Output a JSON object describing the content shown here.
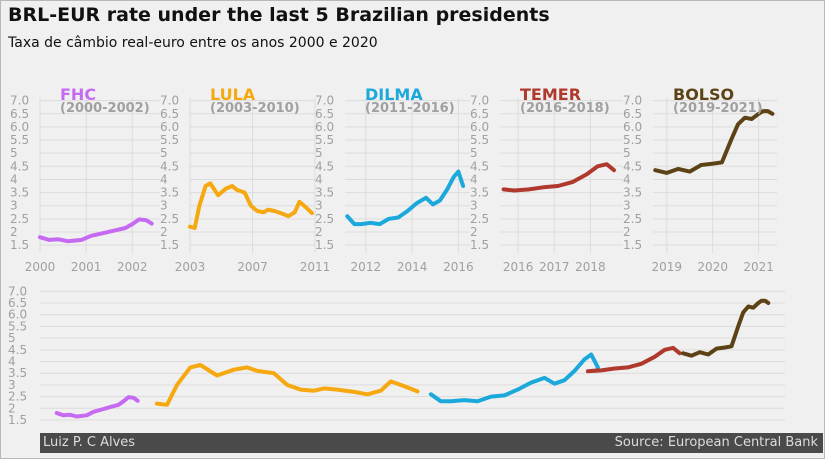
{
  "title": "BRL-EUR rate under the last 5 Brazilian presidents",
  "subtitle": "Taxa de câmbio real-euro entre os anos 2000 e 2020",
  "footer": {
    "author": "Luiz P. C Alves",
    "source": "Source: European Central Bank"
  },
  "chart_data": {
    "type": "line",
    "y_tick_labels": [
      "1.5",
      "2",
      "2.5",
      "3",
      "3.5",
      "4",
      "4.5",
      "5",
      "5.5",
      "6.0",
      "6.5",
      "7.0"
    ],
    "ylim": [
      1.2,
      7.1
    ],
    "grid": true,
    "colors": {
      "FHC": "#c66af2",
      "LULA": "#f5a80f",
      "DILMA": "#1ba9dc",
      "TEMER": "#b0392e",
      "BOLSO": "#5c4214"
    },
    "series": [
      {
        "name": "FHC",
        "period": "(2000-2002)",
        "xlim": [
          2000,
          2002.6
        ],
        "x_ticks": [
          2000,
          2001,
          2002
        ],
        "x": [
          2000.0,
          2000.2,
          2000.4,
          2000.6,
          2000.9,
          2001.1,
          2001.35,
          2001.6,
          2001.85,
          2002.0,
          2002.15,
          2002.3,
          2002.42
        ],
        "y": [
          1.8,
          1.7,
          1.72,
          1.65,
          1.7,
          1.85,
          1.95,
          2.05,
          2.15,
          2.3,
          2.48,
          2.45,
          2.32
        ]
      },
      {
        "name": "LULA",
        "period": "(2003-2010)",
        "xlim": [
          2003,
          2011
        ],
        "x_ticks": [
          2003,
          2007,
          2011
        ],
        "x": [
          2003.0,
          2003.3,
          2003.6,
          2004.0,
          2004.3,
          2004.8,
          2005.3,
          2005.7,
          2006.0,
          2006.5,
          2006.9,
          2007.3,
          2007.7,
          2008.0,
          2008.4,
          2008.9,
          2009.3,
          2009.7,
          2010.0,
          2010.4,
          2010.8
        ],
        "y": [
          2.2,
          2.15,
          3.0,
          3.75,
          3.85,
          3.4,
          3.65,
          3.75,
          3.6,
          3.5,
          3.0,
          2.8,
          2.75,
          2.85,
          2.8,
          2.7,
          2.6,
          2.75,
          3.15,
          2.95,
          2.72
        ]
      },
      {
        "name": "DILMA",
        "period": "(2011-2016)",
        "xlim": [
          2011.1,
          2016.5
        ],
        "x_ticks": [
          2012,
          2014,
          2016
        ],
        "x": [
          2011.2,
          2011.5,
          2011.8,
          2012.2,
          2012.6,
          2013.0,
          2013.4,
          2013.8,
          2014.2,
          2014.6,
          2014.9,
          2015.2,
          2015.5,
          2015.8,
          2016.0,
          2016.2
        ],
        "y": [
          2.6,
          2.3,
          2.3,
          2.35,
          2.3,
          2.5,
          2.55,
          2.8,
          3.1,
          3.3,
          3.05,
          3.2,
          3.6,
          4.1,
          4.3,
          3.75
        ]
      },
      {
        "name": "TEMER",
        "period": "(2016-2018)",
        "xlim": [
          2015.5,
          2018.9
        ],
        "x_ticks": [
          2016,
          2017,
          2018
        ],
        "x": [
          2015.6,
          2015.9,
          2016.3,
          2016.7,
          2017.1,
          2017.5,
          2017.9,
          2018.2,
          2018.45,
          2018.65
        ],
        "y": [
          3.62,
          3.58,
          3.62,
          3.7,
          3.75,
          3.9,
          4.2,
          4.5,
          4.58,
          4.35
        ]
      },
      {
        "name": "BOLSO",
        "period": "(2019-2021)",
        "xlim": [
          2018.7,
          2021.4
        ],
        "x_ticks": [
          2019,
          2020,
          2021
        ],
        "x": [
          2018.75,
          2019.0,
          2019.25,
          2019.5,
          2019.75,
          2020.0,
          2020.2,
          2020.4,
          2020.55,
          2020.7,
          2020.85,
          2021.0,
          2021.1,
          2021.2,
          2021.3
        ],
        "y": [
          4.35,
          4.25,
          4.4,
          4.3,
          4.55,
          4.6,
          4.65,
          5.5,
          6.1,
          6.35,
          6.3,
          6.5,
          6.6,
          6.6,
          6.5
        ]
      }
    ],
    "combined": {
      "description_free": true,
      "xlim": [
        1999.5,
        2021.8
      ],
      "uses_series": [
        "FHC",
        "LULA",
        "DILMA",
        "TEMER",
        "BOLSO"
      ],
      "continuity_points": {
        "LULA_start_y": 2.3,
        "DILMA_start_y": 2.65,
        "TEMER_start_y": 3.65,
        "BOLSO_start_y": 4.35
      }
    }
  }
}
